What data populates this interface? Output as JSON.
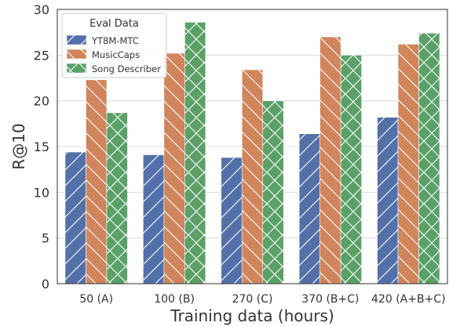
{
  "chart_data": {
    "type": "bar",
    "title": "",
    "xlabel": "Training data (hours)",
    "ylabel": "R@10",
    "categories": [
      "50 (A)",
      "100 (B)",
      "270 (C)",
      "370 (B+C)",
      "420 (A+B+C)"
    ],
    "ylim": [
      0,
      30
    ],
    "yticks": [
      0,
      5,
      10,
      15,
      20,
      25,
      30
    ],
    "grid": true,
    "legend": {
      "title": "Eval Data",
      "placement": "top-left"
    },
    "series": [
      {
        "name": "YT8M-MTC",
        "values": [
          14.4,
          14.1,
          13.8,
          16.4,
          18.2
        ],
        "color": "#5470a8",
        "hatch": "/"
      },
      {
        "name": "MusicCaps",
        "values": [
          22.3,
          25.2,
          23.4,
          27.0,
          26.2
        ],
        "color": "#d0855c",
        "hatch": "\\"
      },
      {
        "name": "Song Describer",
        "values": [
          18.7,
          28.6,
          20.0,
          25.0,
          27.4
        ],
        "color": "#5aa067",
        "hatch": "x"
      }
    ]
  }
}
